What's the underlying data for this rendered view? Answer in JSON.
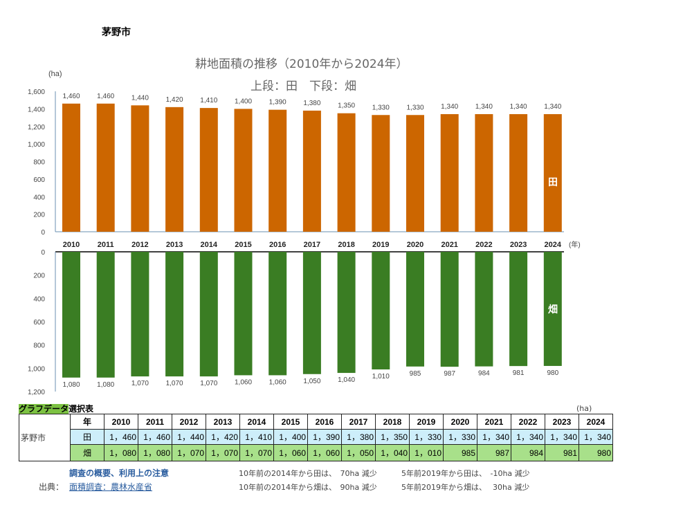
{
  "city": "茅野市",
  "chart_data": [
    {
      "type": "bar",
      "title": "耕地面積の推移（2010年から2024年）",
      "subtitle": "上段：田　下段：畑",
      "ylabel": "(ha)",
      "xlabel": "(年)",
      "series_label": "田",
      "color": "#cc6600",
      "categories": [
        "2010",
        "2011",
        "2012",
        "2013",
        "2014",
        "2015",
        "2016",
        "2017",
        "2018",
        "2019",
        "2020",
        "2021",
        "2022",
        "2023",
        "2024"
      ],
      "values": [
        1460,
        1460,
        1440,
        1420,
        1410,
        1400,
        1390,
        1380,
        1350,
        1330,
        1330,
        1340,
        1340,
        1340,
        1340
      ],
      "data_labels": [
        "1,460",
        "1,460",
        "1,440",
        "1,420",
        "1,410",
        "1,400",
        "1,390",
        "1,380",
        "1,350",
        "1,330",
        "1,330",
        "1,340",
        "1,340",
        "1,340",
        "1,340"
      ],
      "ylim": [
        0,
        1600
      ],
      "yticks": [
        "0",
        "200",
        "400",
        "600",
        "800",
        "1,000",
        "1,200",
        "1,400",
        "1,600"
      ]
    },
    {
      "type": "bar",
      "series_label": "畑",
      "color": "#3a7d23",
      "orientation": "downward",
      "categories": [
        "2010",
        "2011",
        "2012",
        "2013",
        "2014",
        "2015",
        "2016",
        "2017",
        "2018",
        "2019",
        "2020",
        "2021",
        "2022",
        "2023",
        "2024"
      ],
      "values": [
        1080,
        1080,
        1070,
        1070,
        1070,
        1060,
        1060,
        1050,
        1040,
        1010,
        985,
        987,
        984,
        981,
        980
      ],
      "data_labels": [
        "1,080",
        "1,080",
        "1,070",
        "1,070",
        "1,070",
        "1,060",
        "1,060",
        "1,050",
        "1,040",
        "1,010",
        "985",
        "987",
        "984",
        "981",
        "980"
      ],
      "ylim": [
        0,
        1200
      ],
      "yticks": [
        "0",
        "200",
        "400",
        "600",
        "800",
        "1,000",
        "1,200"
      ]
    }
  ],
  "table": {
    "title_highlight": "グラフデータ",
    "title_rest": "選択表",
    "unit": "(ha)",
    "year_header": "年",
    "rice_label": "田",
    "field_label": "畑",
    "years": [
      "2010",
      "2011",
      "2012",
      "2013",
      "2014",
      "2015",
      "2016",
      "2017",
      "2018",
      "2019",
      "2020",
      "2021",
      "2022",
      "2023",
      "2024"
    ],
    "rice": [
      "1，460",
      "1，460",
      "1，440",
      "1，420",
      "1，410",
      "1，400",
      "1，390",
      "1，380",
      "1，350",
      "1，330",
      "1，330",
      "1，340",
      "1，340",
      "1，340",
      "1，340"
    ],
    "field": [
      "1，080",
      "1，080",
      "1，070",
      "1，070",
      "1，070",
      "1，060",
      "1，060",
      "1，050",
      "1，040",
      "1，010",
      "985",
      "987",
      "984",
      "981",
      "980"
    ]
  },
  "footer": {
    "survey_link": "調査の概要、利用上の注意",
    "source_label": "出典：",
    "source_link": "面積調査：農林水産省",
    "rice_10y": "10年前の2014年から田は、　70ha 減少",
    "rice_5y": "5年前2019年から田は、　-10ha 減少",
    "field_10y": "10年前の2014年から畑は、　90ha 減少",
    "field_5y": "5年前2019年から畑は、　 30ha 減少"
  }
}
